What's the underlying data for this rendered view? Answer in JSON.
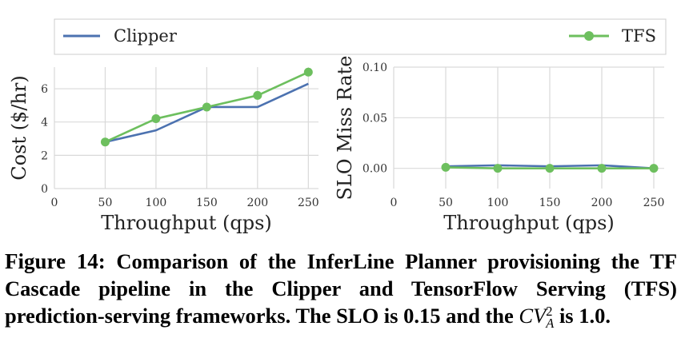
{
  "chart_data": [
    {
      "type": "line",
      "title": "",
      "xlabel": "Throughput (qps)",
      "ylabel": "Cost ($/hr)",
      "xlim": [
        0,
        260
      ],
      "ylim": [
        0,
        7.3
      ],
      "xticks": [
        0,
        50,
        100,
        150,
        200,
        250
      ],
      "yticks": [
        0,
        2,
        4,
        6
      ],
      "grid": true,
      "series": [
        {
          "name": "Clipper",
          "color": "#4c72b0",
          "marker": "none",
          "x": [
            50,
            100,
            150,
            200,
            250
          ],
          "y": [
            2.8,
            3.5,
            4.9,
            4.9,
            6.3
          ]
        },
        {
          "name": "TFS",
          "color": "#6dbf5e",
          "marker": "circle",
          "x": [
            50,
            100,
            150,
            200,
            250
          ],
          "y": [
            2.8,
            4.2,
            4.9,
            5.6,
            7.0
          ]
        }
      ]
    },
    {
      "type": "line",
      "title": "",
      "xlabel": "Throughput (qps)",
      "ylabel": "SLO Miss Rate",
      "xlim": [
        0,
        260
      ],
      "ylim": [
        -0.02,
        0.1
      ],
      "xticks": [
        0,
        50,
        100,
        150,
        200,
        250
      ],
      "yticks": [
        0.0,
        0.05,
        0.1
      ],
      "ytick_labels": [
        "0.00",
        "0.05",
        "0.10"
      ],
      "grid": true,
      "series": [
        {
          "name": "Clipper",
          "color": "#4c72b0",
          "marker": "none",
          "x": [
            50,
            100,
            150,
            200,
            250
          ],
          "y": [
            0.002,
            0.003,
            0.002,
            0.003,
            0.0
          ]
        },
        {
          "name": "TFS",
          "color": "#6dbf5e",
          "marker": "circle",
          "x": [
            50,
            100,
            150,
            200,
            250
          ],
          "y": [
            0.001,
            0.0,
            0.0,
            0.0,
            0.0
          ]
        }
      ]
    }
  ],
  "legend": {
    "placement": "top",
    "entries": [
      {
        "label": "Clipper",
        "color": "#4c72b0",
        "marker": "none"
      },
      {
        "label": "TFS",
        "color": "#6dbf5e",
        "marker": "circle"
      }
    ]
  },
  "caption": {
    "label": "Figure 14:",
    "text": "Comparison of the InferLine Planner provisioning the TF Cascade pipeline in the Clipper and TensorFlow Serving (TFS) prediction-serving frameworks. The SLO is 0.15 and the",
    "math": "CV",
    "math_sup": "2",
    "math_sub": "A",
    "end": "is 1.0."
  }
}
